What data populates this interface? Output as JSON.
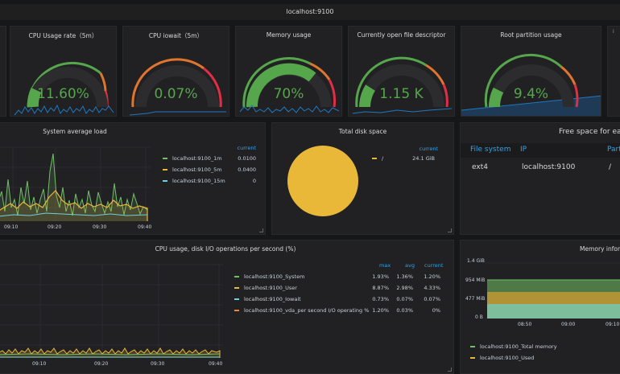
{
  "header": {
    "title": "localhost:9100"
  },
  "gauges": [
    {
      "title": "CPU Usage rate（5m）",
      "value": "11.60%",
      "fraction": 0.116
    },
    {
      "title": "CPU iowait（5m）",
      "value": "0.07%",
      "fraction": 0.0007
    },
    {
      "title": "Memory usage",
      "value": "70%",
      "fraction": 0.7
    },
    {
      "title": "Currently open file descriptor",
      "value": "1.15 K",
      "fraction": 0.12
    },
    {
      "title": "Root partition usage",
      "value": "9.4%",
      "fraction": 0.094
    }
  ],
  "colors": {
    "green": "#56a64b",
    "orange": "#e0752d",
    "red": "#e02f44",
    "yellow": "#eab839",
    "blue": "#5ac8fa",
    "accent": "#33a2e5"
  },
  "load": {
    "title": "System average load",
    "current_header": "current",
    "x_ticks": [
      "09:10",
      "09:20",
      "09:30",
      "09:40"
    ],
    "series": [
      {
        "name": "localhost:9100_1m",
        "current": "0.0100",
        "color": "#73bf69"
      },
      {
        "name": "localhost:9100_5m",
        "current": "0.0400",
        "color": "#eab839"
      },
      {
        "name": "localhost:9100_15m",
        "current": "0",
        "color": "#6ed0e0"
      }
    ]
  },
  "disk": {
    "title": "Total disk space",
    "current_header": "current",
    "series": [
      {
        "name": "/",
        "current": "24.1 GiB",
        "color": "#eab839"
      }
    ]
  },
  "free": {
    "title": "Free space for each partition",
    "columns": [
      "File system",
      "IP",
      "Partition"
    ],
    "rows": [
      [
        "ext4",
        "localhost:9100",
        "/"
      ]
    ]
  },
  "cpuio": {
    "title": "CPU usage, disk I/O operations per second (%)",
    "headers": [
      "max",
      "avg",
      "current"
    ],
    "x_ticks": [
      "09:10",
      "09:20",
      "09:30",
      "09:40"
    ],
    "series": [
      {
        "name": "localhost:9100_System",
        "max": "1.93%",
        "avg": "1.36%",
        "current": "1.20%",
        "color": "#73bf69"
      },
      {
        "name": "localhost:9100_User",
        "max": "8.87%",
        "avg": "2.98%",
        "current": "4.33%",
        "color": "#eab839"
      },
      {
        "name": "localhost:9100_Iowait",
        "max": "0.73%",
        "avg": "0.07%",
        "current": "0.07%",
        "color": "#6ed0e0"
      },
      {
        "name": "localhost:9100_vda_per second I/O operating %",
        "max": "1.20%",
        "avg": "0.03%",
        "current": "0%",
        "color": "#ef843c"
      }
    ]
  },
  "memory": {
    "title": "Memory information",
    "y_ticks": [
      "1.4 GiB",
      "954 MiB",
      "477 MiB",
      "0 B"
    ],
    "x_ticks": [
      "08:50",
      "09:00",
      "09:10"
    ],
    "series": [
      {
        "name": "localhost:9100_Total memory",
        "color": "#73bf69"
      },
      {
        "name": "localhost:9100_Used",
        "color": "#eab839"
      }
    ]
  }
}
